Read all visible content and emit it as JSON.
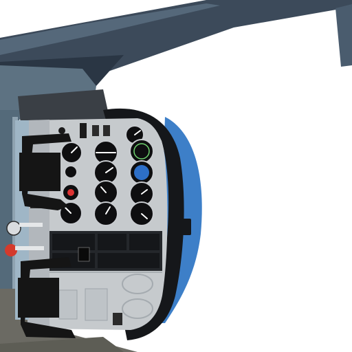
{
  "scene": {
    "view": "cockpit-instrument-panel",
    "colors": {
      "sky": "#ffffff",
      "roof_frame": "#3c4a5a",
      "panel": "#c6cacd",
      "panel_dark": "#9ea4aa",
      "glareshield": "#15171a",
      "nose_blue": "#3d7fc8",
      "gauge_face": "#0e0e10",
      "yoke": "#151515",
      "left_wall": "#6f8696"
    },
    "gauges": [
      {
        "id": "suction",
        "type": "small"
      },
      {
        "id": "airspeed",
        "type": "standard"
      },
      {
        "id": "attitude",
        "type": "standard"
      },
      {
        "id": "altimeter",
        "type": "standard"
      },
      {
        "id": "turn-coordinator",
        "type": "standard"
      },
      {
        "id": "heading",
        "type": "standard"
      },
      {
        "id": "vertical-speed",
        "type": "standard"
      },
      {
        "id": "clock",
        "type": "standard"
      },
      {
        "id": "nav1",
        "type": "standard"
      },
      {
        "id": "nav2",
        "type": "standard"
      },
      {
        "id": "rpm",
        "type": "standard"
      },
      {
        "id": "adf",
        "type": "standard"
      },
      {
        "id": "engine-cluster",
        "type": "small"
      }
    ]
  }
}
